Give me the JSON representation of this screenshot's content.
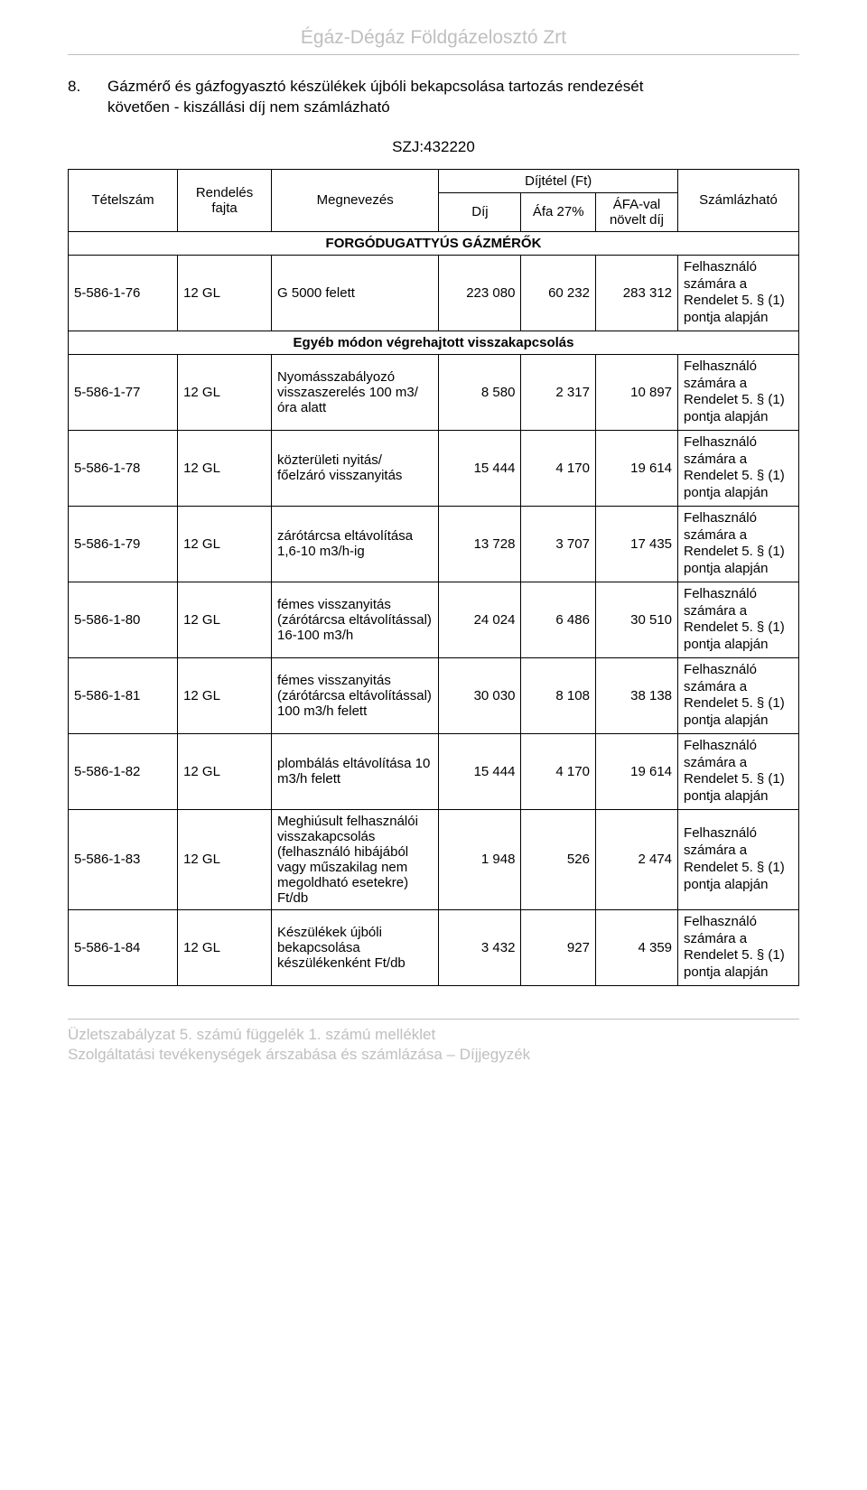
{
  "header": {
    "company": "Égáz-Dégáz Földgázelosztó Zrt"
  },
  "section": {
    "number": "8.",
    "title_line1": "Gázmérő és gázfogyasztó készülékek újbóli bekapcsolása tartozás rendezését",
    "title_line2": "követően - kiszállási díj nem számlázható",
    "szj": "SZJ:432220"
  },
  "table": {
    "head": {
      "tetelszam": "Tételszám",
      "rendeles": "Rendelés fajta",
      "megnevezes": "Megnevezés",
      "dijtetel": "Díjtétel (Ft)",
      "dij": "Díj",
      "afa": "Áfa 27%",
      "afaval": "ÁFA-val növelt díj",
      "szamlazhato": "Számlázható"
    },
    "subhead1": "FORGÓDUGATTYÚS GÁZMÉRŐK",
    "subhead2": "Egyéb módon végrehajtott visszakapcsolás",
    "szam_text": "Felhasználó számára a Rendelet 5. § (1) pontja alapján",
    "rows": [
      {
        "tetel": "5-586-1-76",
        "rend": "12 GL",
        "meg": "G 5000 felett",
        "dij": "223 080",
        "afa": "60 232",
        "afaval": "283 312"
      },
      {
        "tetel": "5-586-1-77",
        "rend": "12 GL",
        "meg": "Nyomásszabályozó visszaszerelés 100 m3/óra alatt",
        "dij": "8 580",
        "afa": "2 317",
        "afaval": "10 897"
      },
      {
        "tetel": "5-586-1-78",
        "rend": "12 GL",
        "meg": "közterületi nyitás/ főelzáró visszanyitás",
        "dij": "15 444",
        "afa": "4 170",
        "afaval": "19 614"
      },
      {
        "tetel": "5-586-1-79",
        "rend": "12 GL",
        "meg": "zárótárcsa eltávolítása 1,6-10 m3/h-ig",
        "dij": "13 728",
        "afa": "3 707",
        "afaval": "17 435"
      },
      {
        "tetel": "5-586-1-80",
        "rend": "12 GL",
        "meg": "fémes visszanyitás (zárótárcsa eltávolítással) 16-100 m3/h",
        "dij": "24 024",
        "afa": "6 486",
        "afaval": "30 510"
      },
      {
        "tetel": "5-586-1-81",
        "rend": "12 GL",
        "meg": "fémes visszanyitás (zárótárcsa eltávolítással) 100 m3/h felett",
        "dij": "30 030",
        "afa": "8 108",
        "afaval": "38 138"
      },
      {
        "tetel": "5-586-1-82",
        "rend": "12 GL",
        "meg": "plombálás eltávolítása 10 m3/h felett",
        "dij": "15 444",
        "afa": "4 170",
        "afaval": "19 614"
      },
      {
        "tetel": "5-586-1-83",
        "rend": "12 GL",
        "meg": "Meghiúsult felhasználói visszakapcsolás (felhasználó hibájából vagy műszakilag nem megoldható esetekre) Ft/db",
        "dij": "1 948",
        "afa": "526",
        "afaval": "2 474"
      },
      {
        "tetel": "5-586-1-84",
        "rend": "12 GL",
        "meg": "Készülékek újbóli bekapcsolása készülékenként Ft/db",
        "dij": "3 432",
        "afa": "927",
        "afaval": "4 359"
      }
    ]
  },
  "footer": {
    "line1": "Üzletszabályzat 5. számú függelék 1. számú melléklet",
    "line2": "Szolgáltatási tevékenységek árszabása és számlázása – Díjjegyzék"
  }
}
